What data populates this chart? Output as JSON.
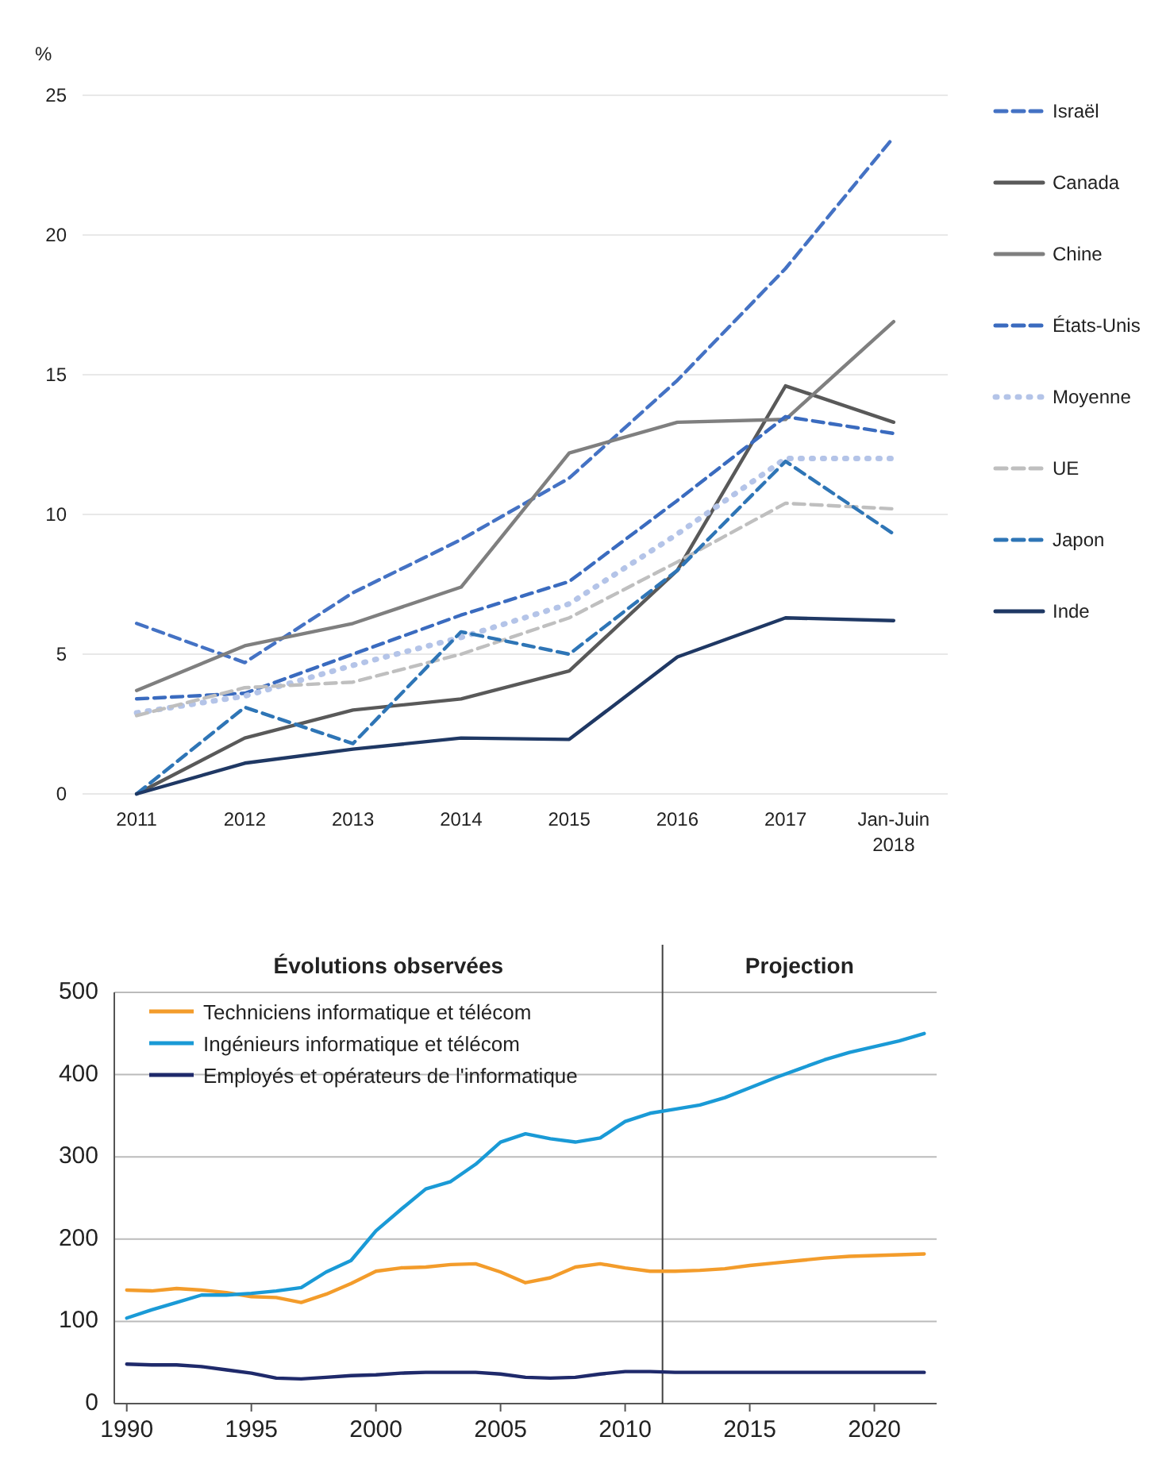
{
  "chart_data": [
    {
      "type": "line",
      "ylabel": "%",
      "categories": [
        "2011",
        "2012",
        "2013",
        "2014",
        "2015",
        "2016",
        "2017",
        "Jan-Juin\n2018"
      ],
      "ylim": [
        0,
        25
      ],
      "yticks": [
        0,
        5,
        10,
        15,
        20,
        25
      ],
      "grid": "y",
      "legend": "right",
      "series": [
        {
          "name": "Israël",
          "color": "#4472c4",
          "line_style": "dashed",
          "values": [
            6.1,
            4.7,
            7.2,
            9.1,
            11.3,
            14.8,
            18.8,
            23.5
          ]
        },
        {
          "name": "Canada",
          "color": "#595959",
          "line_style": "solid",
          "values": [
            0,
            2.0,
            3.0,
            3.4,
            4.4,
            8.0,
            14.6,
            13.3
          ]
        },
        {
          "name": "Chine",
          "color": "#7f7f7f",
          "line_style": "solid",
          "values": [
            3.7,
            5.3,
            6.1,
            7.4,
            12.2,
            13.3,
            13.4,
            16.9
          ]
        },
        {
          "name": "États-Unis",
          "color": "#3a6bbf",
          "line_style": "dashed",
          "values": [
            3.4,
            3.6,
            5.0,
            6.4,
            7.6,
            10.5,
            13.5,
            12.9
          ]
        },
        {
          "name": "Moyenne",
          "color": "#b4c4e8",
          "line_style": "dotted",
          "values": [
            2.9,
            3.5,
            4.6,
            5.6,
            6.8,
            9.3,
            12.0,
            12.0
          ]
        },
        {
          "name": "UE",
          "color": "#bfbfbf",
          "line_style": "dashed",
          "values": [
            2.8,
            3.8,
            4.0,
            5.0,
            6.3,
            8.3,
            10.4,
            10.2
          ]
        },
        {
          "name": "Japon",
          "color": "#2e75b6",
          "line_style": "dashed",
          "values": [
            0,
            3.1,
            1.8,
            5.8,
            5.0,
            8.0,
            11.9,
            9.3
          ]
        },
        {
          "name": "Inde",
          "color": "#1f3864",
          "line_style": "solid",
          "values": [
            0,
            1.1,
            1.6,
            2.0,
            1.95,
            4.9,
            6.3,
            6.2
          ]
        }
      ]
    },
    {
      "type": "line",
      "annotations": [
        "Évolutions observées",
        "Projection"
      ],
      "x": [
        1990,
        1991,
        1992,
        1993,
        1994,
        1995,
        1996,
        1997,
        1998,
        1999,
        2000,
        2001,
        2002,
        2003,
        2004,
        2005,
        2006,
        2007,
        2008,
        2009,
        2010,
        2011,
        2012,
        2013,
        2014,
        2015,
        2016,
        2017,
        2018,
        2019,
        2020,
        2021,
        2022
      ],
      "xlim": [
        1989.5,
        2022.5
      ],
      "xticks": [
        1990,
        1995,
        2000,
        2005,
        2010,
        2015,
        2020
      ],
      "ylim": [
        0,
        500
      ],
      "yticks": [
        0,
        100,
        200,
        300,
        400,
        500
      ],
      "grid": "y",
      "legend": "top left",
      "ref_lines": [
        {
          "axis": "x",
          "value": 2011.5,
          "color": "#404040"
        }
      ],
      "series": [
        {
          "name": "Techniciens informatique et télécom",
          "color": "#f39c2b",
          "values": [
            138,
            137,
            140,
            138,
            135,
            130,
            129,
            123,
            133,
            146,
            161,
            165,
            166,
            169,
            170,
            160,
            147,
            153,
            166,
            170,
            165,
            161,
            161,
            162,
            164,
            168,
            171,
            174,
            177,
            179,
            180,
            181,
            182
          ]
        },
        {
          "name": "Ingénieurs informatique et télécom",
          "color": "#1a9ad6",
          "values": [
            104,
            114,
            123,
            132,
            132,
            134,
            137,
            141,
            160,
            174,
            210,
            236,
            261,
            270,
            291,
            318,
            328,
            322,
            318,
            323,
            343,
            353,
            358,
            363,
            372,
            384,
            396,
            407,
            418,
            427,
            434,
            441,
            450
          ]
        },
        {
          "name": "Employés et opérateurs de l'informatique",
          "color": "#1f2a6b",
          "values": [
            48,
            47,
            47,
            45,
            41,
            37,
            31,
            30,
            32,
            34,
            35,
            37,
            38,
            38,
            38,
            36,
            32,
            31,
            32,
            36,
            39,
            39,
            38,
            38,
            38,
            38,
            38,
            38,
            38,
            38,
            38,
            38,
            38
          ]
        }
      ]
    }
  ]
}
